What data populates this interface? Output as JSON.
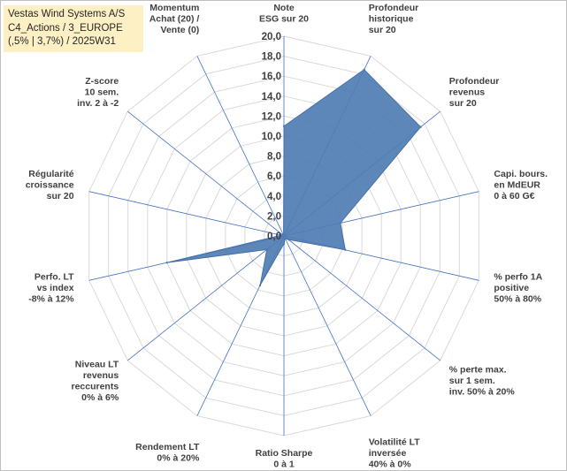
{
  "chart_data": {
    "type": "radar",
    "title_lines": [
      "Vestas Wind Systems A/S",
      "C4_Actions / 3_EUROPE",
      "(,5% | 3,7%) / 2025W31"
    ],
    "rmax": 20,
    "ticks": [
      "0,0",
      "2,0",
      "4,0",
      "6,0",
      "8,0",
      "10,0",
      "12,0",
      "14,0",
      "16,0",
      "18,0",
      "20,0"
    ],
    "grid": true,
    "series": [
      {
        "values": [
          11,
          18.5,
          17.5,
          5.8,
          6.3,
          0.6,
          0.3,
          0.8,
          5.5,
          2.2,
          12,
          0.3,
          0.2,
          0.1
        ]
      }
    ],
    "axes": [
      {
        "lines": [
          "Note",
          "ESG sur 20"
        ]
      },
      {
        "lines": [
          "Profondeur",
          "historique",
          "sur 20"
        ]
      },
      {
        "lines": [
          "Profondeur",
          "revenus",
          "sur 20"
        ]
      },
      {
        "lines": [
          "Capi. bours.",
          "en MdEUR",
          "0 à 60 G€"
        ]
      },
      {
        "lines": [
          "% perfo 1A",
          "positive",
          "50% à 80%"
        ]
      },
      {
        "lines": [
          "% perte max.",
          "sur 1 sem.",
          "inv. 50% à 20%"
        ]
      },
      {
        "lines": [
          "Volatilité LT",
          "inversée",
          "40% à 0%"
        ]
      },
      {
        "lines": [
          "Ratio Sharpe",
          "0 à 1"
        ]
      },
      {
        "lines": [
          "Rendement LT",
          "0% à 20%"
        ]
      },
      {
        "lines": [
          "Niveau LT",
          "revenus",
          "reccurents",
          "0% à 6%"
        ]
      },
      {
        "lines": [
          "Perfo. LT",
          "vs index",
          "-8% à 12%"
        ]
      },
      {
        "lines": [
          "Régularité",
          "croissance",
          "sur 20"
        ]
      },
      {
        "lines": [
          "Z-score",
          "10 sem.",
          "inv. 2 à -2"
        ]
      },
      {
        "lines": [
          "Momentum",
          "Achat (20) /",
          "Vente (0)"
        ]
      }
    ],
    "colors": {
      "fill": "#4f7cb3",
      "grid": "#d9d9d9",
      "spoke": "#4472c4",
      "text": "#404040"
    }
  }
}
